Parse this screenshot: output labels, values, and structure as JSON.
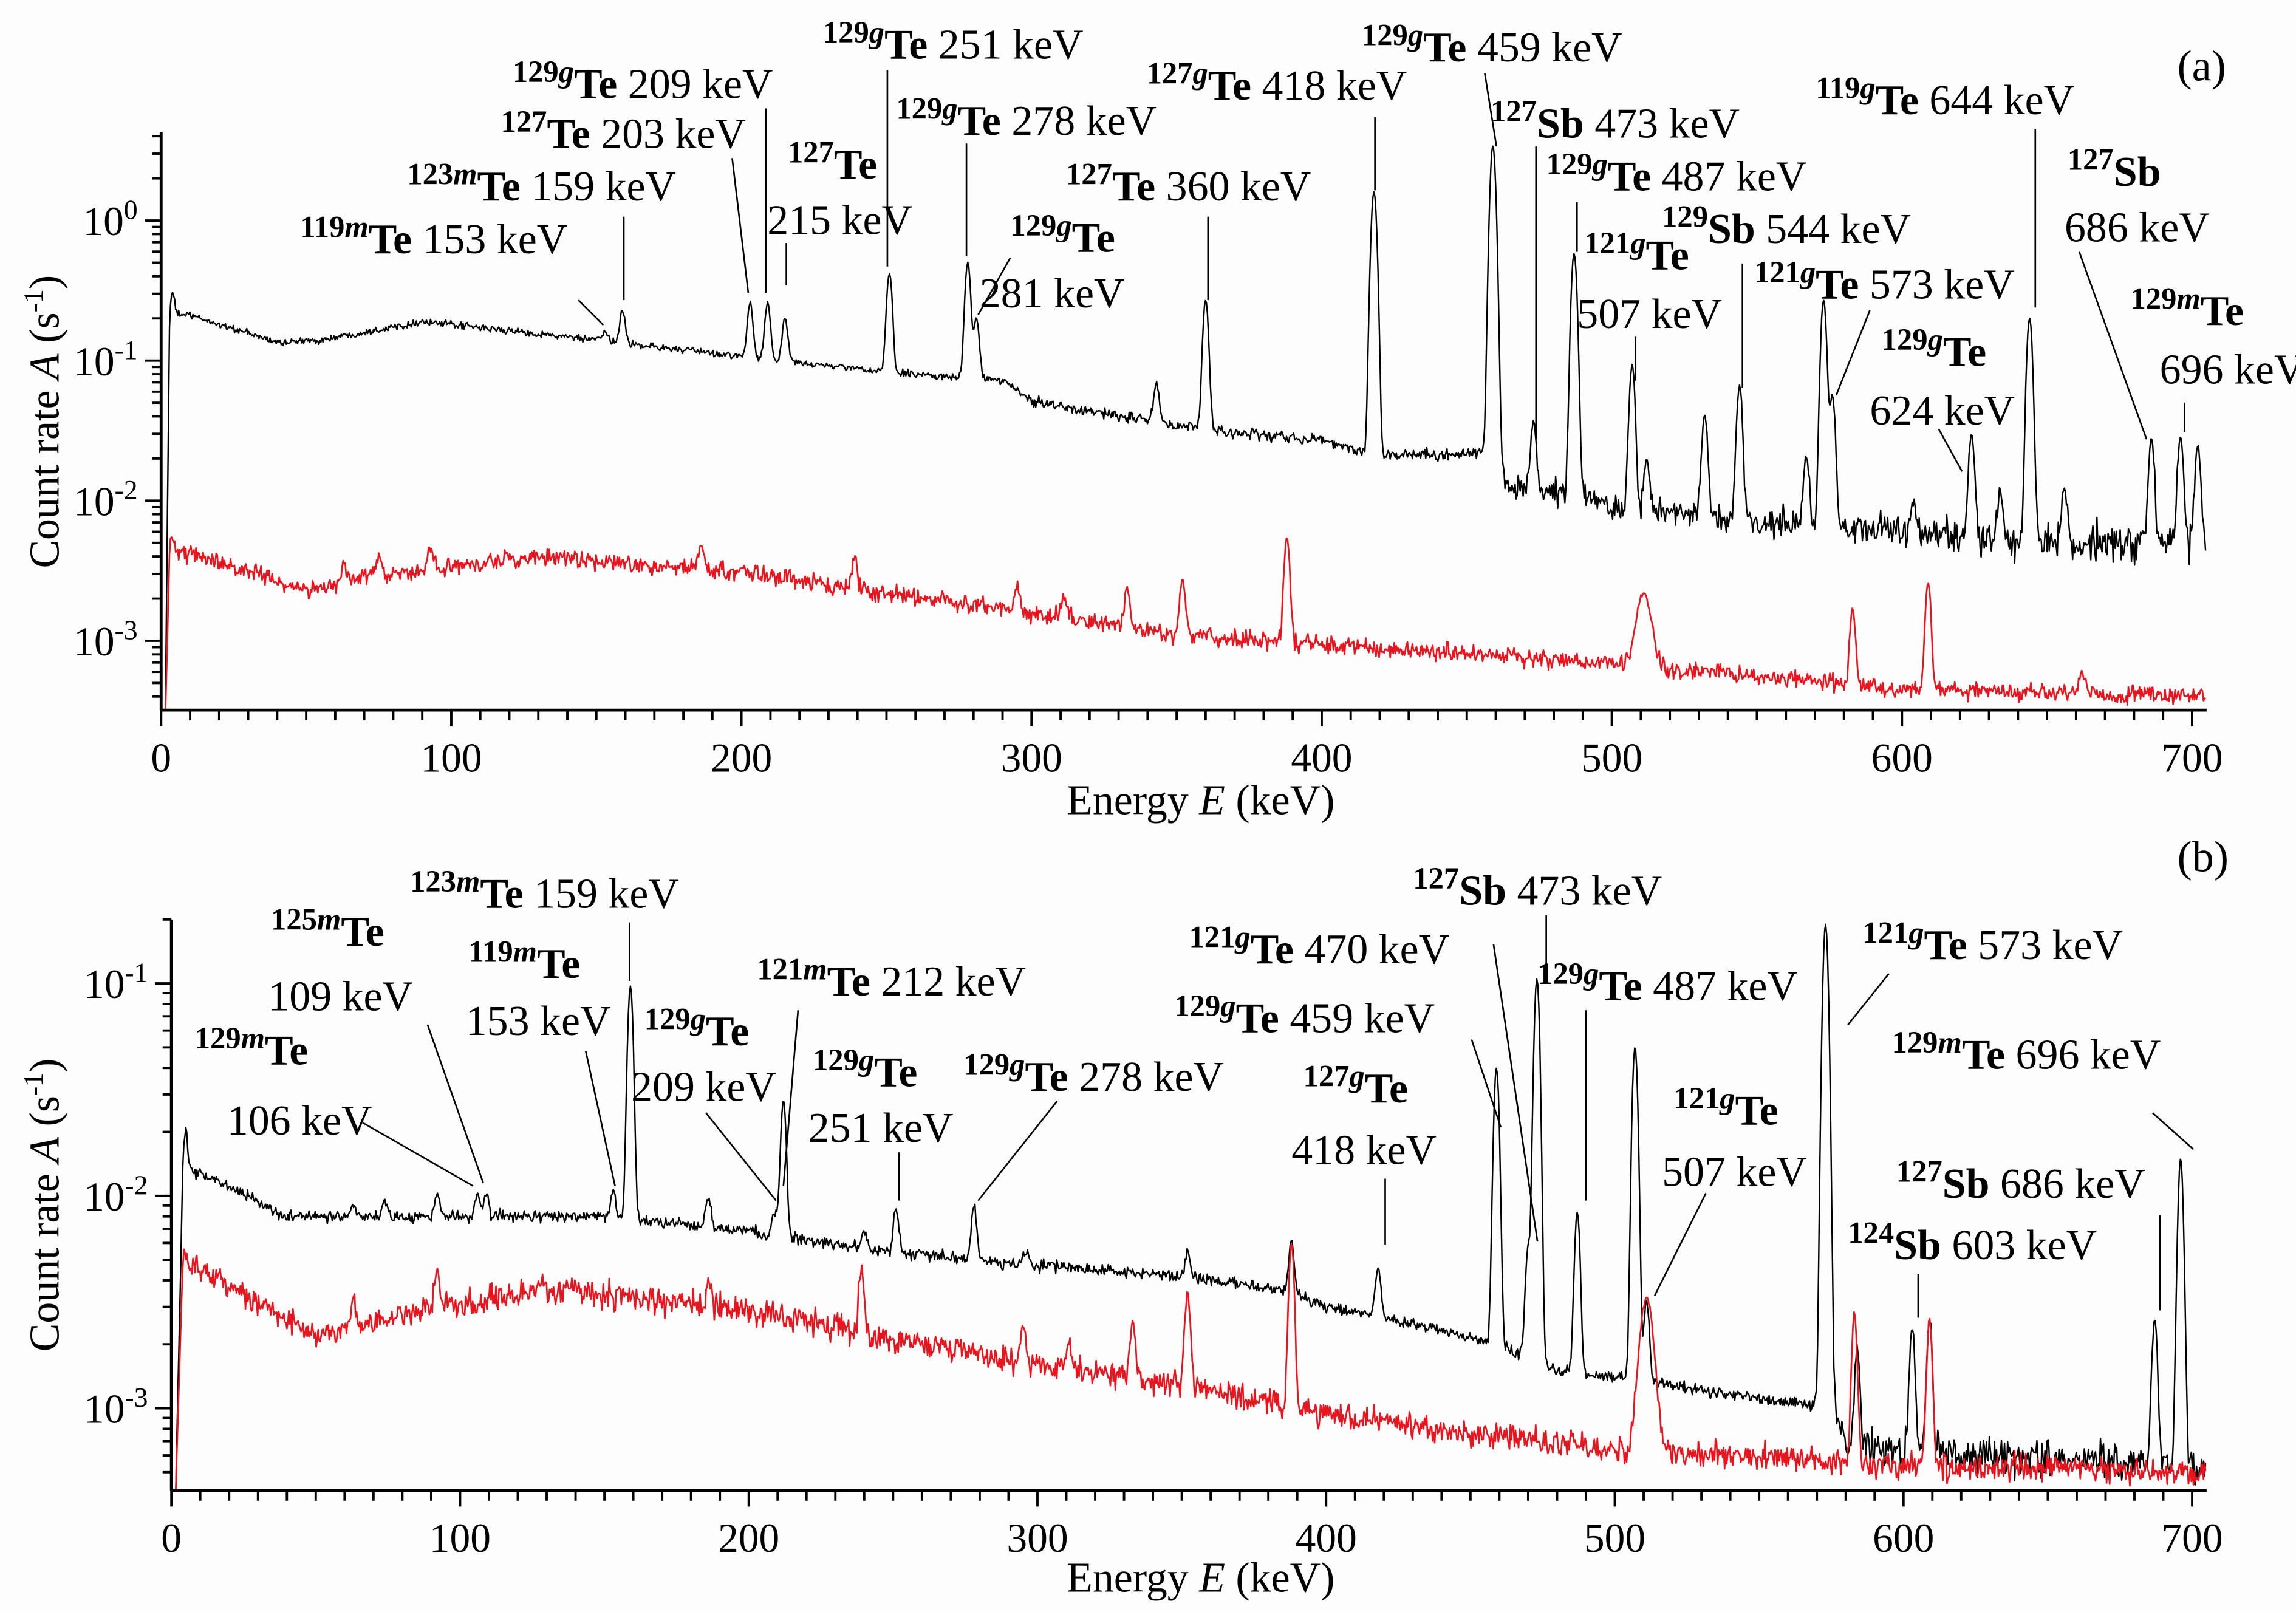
{
  "chart_data": [
    {
      "type": "line",
      "title": "(a)",
      "xlabel": "Energy E (keV)",
      "xlabel_parts": [
        "Energy ",
        "E",
        " (keV)"
      ],
      "ylabel": "Count rate A (s-1)",
      "ylabel_parts": [
        "Count rate ",
        "A",
        " (s",
        "-1",
        ")"
      ],
      "xlim": [
        0,
        705
      ],
      "ylim": [
        0.00032,
        4.3
      ],
      "y_scale": "log",
      "x_ticks": [
        "0",
        "100",
        "200",
        "300",
        "400",
        "500",
        "600",
        "700"
      ],
      "y_ticks": [
        {
          "base": "10",
          "exp": "0"
        },
        {
          "base": "10",
          "exp": "-1"
        },
        {
          "base": "10",
          "exp": "-2"
        },
        {
          "base": "10",
          "exp": "-3"
        }
      ],
      "grid": false,
      "series": [
        {
          "color": "#000000",
          "continuum": [
            [
              1.5,
              0.00032
            ],
            [
              3,
              0.22
            ],
            [
              10,
              0.21
            ],
            [
              40,
              0.135
            ],
            [
              55,
              0.14
            ],
            [
              90,
              0.19
            ],
            [
              150,
              0.14
            ],
            [
              200,
              0.107
            ],
            [
              250,
              0.083
            ],
            [
              290,
              0.072
            ],
            [
              300,
              0.052
            ],
            [
              340,
              0.037
            ],
            [
              360,
              0.032
            ],
            [
              400,
              0.027
            ],
            [
              420,
              0.021
            ],
            [
              461,
              0.022
            ],
            [
              464,
              0.0125
            ],
            [
              490,
              0.011
            ],
            [
              500,
              0.009
            ],
            [
              550,
              0.007
            ],
            [
              600,
              0.006
            ],
            [
              650,
              0.005
            ],
            [
              705,
              0.0047
            ]
          ],
          "peaks": [
            [
              4,
              0.3
            ],
            [
              153,
              0.16
            ],
            [
              159,
              0.23
            ],
            [
              203,
              0.26
            ],
            [
              209,
              0.26
            ],
            [
              215,
              0.2
            ],
            [
              251,
              0.42
            ],
            [
              278,
              0.5
            ],
            [
              281,
              0.2
            ],
            [
              343,
              0.07
            ],
            [
              360,
              0.27
            ],
            [
              418,
              1.6
            ],
            [
              459,
              3.4
            ],
            [
              473,
              0.037
            ],
            [
              487,
              0.58
            ],
            [
              507,
              0.093
            ],
            [
              512,
              0.02
            ],
            [
              532,
              0.042
            ],
            [
              544,
              0.066
            ],
            [
              567,
              0.02
            ],
            [
              573,
              0.27
            ],
            [
              576,
              0.056
            ],
            [
              604,
              0.0106
            ],
            [
              624,
              0.03
            ],
            [
              634,
              0.012
            ],
            [
              644,
              0.2
            ],
            [
              656,
              0.012
            ],
            [
              686,
              0.029
            ],
            [
              696,
              0.028
            ],
            [
              702,
              0.024
            ]
          ]
        },
        {
          "color": "#e8141e",
          "continuum": [
            [
              1.5,
              0.00032
            ],
            [
              3,
              0.0047
            ],
            [
              10,
              0.0042
            ],
            [
              50,
              0.0023
            ],
            [
              70,
              0.0028
            ],
            [
              130,
              0.004
            ],
            [
              200,
              0.0031
            ],
            [
              250,
              0.0022
            ],
            [
              300,
              0.0016
            ],
            [
              350,
              0.0011
            ],
            [
              400,
              0.00095
            ],
            [
              500,
              0.00069
            ],
            [
              600,
              0.00045
            ],
            [
              705,
              0.0004
            ]
          ],
          "peaks": [
            [
              4,
              0.005
            ],
            [
              63,
              0.0035
            ],
            [
              75,
              0.0039
            ],
            [
              93,
              0.0048
            ],
            [
              186,
              0.0048
            ],
            [
              239,
              0.004
            ],
            [
              295,
              0.0024
            ],
            [
              311,
              0.002
            ],
            [
              333,
              0.0024
            ],
            [
              352,
              0.0028
            ],
            [
              388,
              0.0055
            ],
            [
              511,
              0.0022
            ],
            [
              583,
              0.0017
            ],
            [
              609,
              0.0026
            ],
            [
              662,
              0.00058
            ]
          ]
        }
      ],
      "annotations": [
        {
          "mass": "119m",
          "element": "Te",
          "energy": "153 keV"
        },
        {
          "mass": "123m",
          "element": "Te",
          "energy": "159 keV"
        },
        {
          "mass": "127",
          "element": "Te",
          "energy": "203 keV"
        },
        {
          "mass": "129g",
          "element": "Te",
          "energy": "209 keV"
        },
        {
          "mass": "127",
          "element": "Te",
          "energy": "215 keV"
        },
        {
          "mass": "129g",
          "element": "Te",
          "energy": "251 keV"
        },
        {
          "mass": "129g",
          "element": "Te",
          "energy": "278 keV"
        },
        {
          "mass": "129g",
          "element": "Te",
          "energy": "281 keV"
        },
        {
          "mass": "127",
          "element": "Te",
          "energy": "360 keV"
        },
        {
          "mass": "127g",
          "element": "Te",
          "energy": "418 keV"
        },
        {
          "mass": "129g",
          "element": "Te",
          "energy": "459 keV"
        },
        {
          "mass": "127",
          "element": "Sb",
          "energy": "473 keV"
        },
        {
          "mass": "129g",
          "element": "Te",
          "energy": "487 keV"
        },
        {
          "mass": "121g",
          "element": "Te",
          "energy": "507 keV"
        },
        {
          "mass": "129",
          "element": "Sb",
          "energy": "544 keV"
        },
        {
          "mass": "121g",
          "element": "Te",
          "energy": "573 keV"
        },
        {
          "mass": "129g",
          "element": "Te",
          "energy": "624 keV"
        },
        {
          "mass": "119g",
          "element": "Te",
          "energy": "644 keV"
        },
        {
          "mass": "127",
          "element": "Sb",
          "energy": "686 keV"
        },
        {
          "mass": "129m",
          "element": "Te",
          "energy": "696 keV"
        }
      ]
    },
    {
      "type": "line",
      "title": "(b)",
      "xlabel": "Energy E (keV)",
      "xlabel_parts": [
        "Energy ",
        "E",
        " (keV)"
      ],
      "ylabel": "Count rate A (s-1)",
      "ylabel_parts": [
        "Count rate ",
        "A",
        " (s",
        "-1",
        ")"
      ],
      "xlim": [
        0,
        705
      ],
      "ylim": [
        0.00041,
        0.2
      ],
      "y_scale": "log",
      "x_ticks": [
        "0",
        "100",
        "200",
        "300",
        "400",
        "500",
        "600",
        "700"
      ],
      "y_ticks": [
        {
          "base": "10",
          "exp": "-1"
        },
        {
          "base": "10",
          "exp": "-2"
        },
        {
          "base": "10",
          "exp": "-3"
        }
      ],
      "grid": false,
      "series": [
        {
          "color": "#000000",
          "continuum": [
            [
              1.5,
              0.00041
            ],
            [
              4,
              0.013
            ],
            [
              10,
              0.0129
            ],
            [
              40,
              0.008
            ],
            [
              100,
              0.008
            ],
            [
              150,
              0.008
            ],
            [
              200,
              0.0068
            ],
            [
              250,
              0.0054
            ],
            [
              300,
              0.0047
            ],
            [
              350,
              0.0042
            ],
            [
              385,
              0.0036
            ],
            [
              400,
              0.003
            ],
            [
              430,
              0.0025
            ],
            [
              460,
              0.002
            ],
            [
              480,
              0.0015
            ],
            [
              500,
              0.0014
            ],
            [
              550,
              0.0011
            ],
            [
              576,
              0.001
            ],
            [
              580,
              0.00068
            ],
            [
              600,
              0.00063
            ],
            [
              705,
              0.00054
            ]
          ],
          "peaks": [
            [
              5,
              0.021
            ],
            [
              63,
              0.0092
            ],
            [
              74,
              0.0095
            ],
            [
              92,
              0.0101
            ],
            [
              106,
              0.0102
            ],
            [
              109,
              0.0102
            ],
            [
              153,
              0.0105
            ],
            [
              159,
              0.097
            ],
            [
              186,
              0.0098
            ],
            [
              209,
              0.0083
            ],
            [
              212,
              0.028
            ],
            [
              240,
              0.0068
            ],
            [
              251,
              0.0087
            ],
            [
              278,
              0.0091
            ],
            [
              296,
              0.0055
            ],
            [
              352,
              0.0055
            ],
            [
              388,
              0.006
            ],
            [
              418,
              0.0047
            ],
            [
              459,
              0.04
            ],
            [
              470,
              0.0058
            ],
            [
              473,
              0.105
            ],
            [
              487,
              0.0084
            ],
            [
              507,
              0.05
            ],
            [
              511,
              0.0032
            ],
            [
              573,
              0.19
            ],
            [
              584,
              0.0019
            ],
            [
              603,
              0.0024
            ],
            [
              609,
              0.0026
            ],
            [
              687,
              0.0026
            ],
            [
              696,
              0.015
            ]
          ]
        },
        {
          "color": "#e8141e",
          "continuum": [
            [
              1.5,
              0.00041
            ],
            [
              4,
              0.005
            ],
            [
              10,
              0.0045
            ],
            [
              50,
              0.0022
            ],
            [
              70,
              0.0026
            ],
            [
              130,
              0.0037
            ],
            [
              200,
              0.0029
            ],
            [
              250,
              0.0021
            ],
            [
              300,
              0.0016
            ],
            [
              350,
              0.0013
            ],
            [
              400,
              0.00094
            ],
            [
              500,
              0.00063
            ],
            [
              600,
              0.00054
            ],
            [
              705,
              0.0005
            ]
          ],
          "peaks": [
            [
              5,
              0.005
            ],
            [
              63,
              0.0033
            ],
            [
              92,
              0.0045
            ],
            [
              186,
              0.004
            ],
            [
              239,
              0.0045
            ],
            [
              295,
              0.0025
            ],
            [
              311,
              0.002
            ],
            [
              333,
              0.0026
            ],
            [
              352,
              0.0035
            ],
            [
              388,
              0.006
            ],
            [
              511,
              0.0033
            ],
            [
              583,
              0.0028
            ],
            [
              609,
              0.0026
            ]
          ]
        }
      ],
      "annotations": [
        {
          "mass": "129m",
          "element": "Te",
          "energy": "106 keV"
        },
        {
          "mass": "125m",
          "element": "Te",
          "energy": "109 keV"
        },
        {
          "mass": "123m",
          "element": "Te",
          "energy": "159 keV"
        },
        {
          "mass": "119m",
          "element": "Te",
          "energy": "153 keV"
        },
        {
          "mass": "129g",
          "element": "Te",
          "energy": "209 keV"
        },
        {
          "mass": "121m",
          "element": "Te",
          "energy": "212 keV"
        },
        {
          "mass": "129g",
          "element": "Te",
          "energy": "251 keV"
        },
        {
          "mass": "129g",
          "element": "Te",
          "energy": "278 keV"
        },
        {
          "mass": "127g",
          "element": "Te",
          "energy": "418 keV"
        },
        {
          "mass": "129g",
          "element": "Te",
          "energy": "459 keV"
        },
        {
          "mass": "121g",
          "element": "Te",
          "energy": "470 keV"
        },
        {
          "mass": "127",
          "element": "Sb",
          "energy": "473 keV"
        },
        {
          "mass": "129g",
          "element": "Te",
          "energy": "487 keV"
        },
        {
          "mass": "121g",
          "element": "Te",
          "energy": "507 keV"
        },
        {
          "mass": "121g",
          "element": "Te",
          "energy": "573 keV"
        },
        {
          "mass": "129m",
          "element": "Te",
          "energy": "696 keV"
        },
        {
          "mass": "127",
          "element": "Sb",
          "energy": "686 keV"
        },
        {
          "mass": "124",
          "element": "Sb",
          "energy": "603 keV"
        }
      ]
    }
  ]
}
